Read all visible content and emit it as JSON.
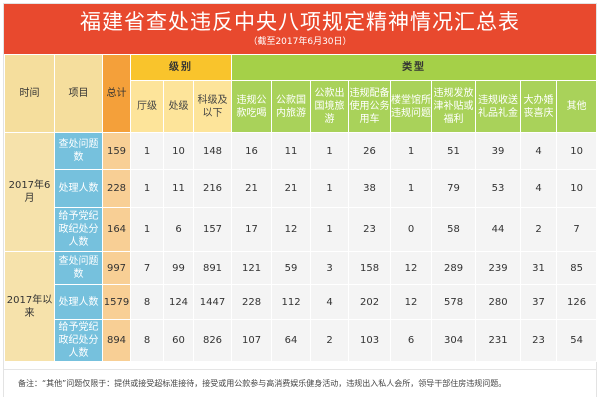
{
  "title": "福建省查处违反中央八项规定精神情况汇总表",
  "subtitle": "（截至2017年6月30日）",
  "headers": {
    "time": "时间",
    "item": "项目",
    "total": "总计",
    "level_group": "级别",
    "type_group": "类型",
    "levels": [
      "厅级",
      "处级",
      "科级及以下"
    ],
    "types": [
      "违规公款吃喝",
      "公款国内旅游",
      "公款出国境旅游",
      "违规配备使用公务用车",
      "楼堂馆所违规问题",
      "违规发放津补贴或福利",
      "违规收送礼品礼金",
      "大办婚丧喜庆",
      "其他"
    ]
  },
  "periods": [
    {
      "label": "2017年6月",
      "rows": [
        {
          "item": "查处问题数",
          "total": "159",
          "levels": [
            "1",
            "10",
            "148"
          ],
          "types": [
            "16",
            "11",
            "1",
            "26",
            "1",
            "51",
            "39",
            "4",
            "10"
          ]
        },
        {
          "item": "处理人数",
          "total": "228",
          "levels": [
            "1",
            "11",
            "216"
          ],
          "types": [
            "21",
            "21",
            "1",
            "38",
            "1",
            "79",
            "53",
            "4",
            "10"
          ]
        },
        {
          "item": "给予党纪政纪处分人数",
          "total": "164",
          "levels": [
            "1",
            "6",
            "157"
          ],
          "types": [
            "17",
            "12",
            "1",
            "23",
            "0",
            "58",
            "44",
            "2",
            "7"
          ]
        }
      ]
    },
    {
      "label": "2017年以来",
      "rows": [
        {
          "item": "查处问题数",
          "total": "997",
          "levels": [
            "7",
            "99",
            "891"
          ],
          "types": [
            "121",
            "59",
            "3",
            "158",
            "12",
            "289",
            "239",
            "31",
            "85"
          ]
        },
        {
          "item": "处理人数",
          "total": "1579",
          "levels": [
            "8",
            "124",
            "1447"
          ],
          "types": [
            "228",
            "112",
            "4",
            "202",
            "12",
            "578",
            "280",
            "37",
            "126"
          ]
        },
        {
          "item": "给予党纪政纪处分人数",
          "total": "894",
          "levels": [
            "8",
            "60",
            "826"
          ],
          "types": [
            "107",
            "64",
            "2",
            "103",
            "6",
            "304",
            "231",
            "23",
            "54"
          ]
        }
      ]
    }
  ],
  "note": "备注：“其他”问题仅限于：提供或接受超标准接待，接受或用公款参与高消费娱乐健身活动，违规出入私人会所，领导干部住房违规问题。",
  "colors": {
    "banner": "#e8492e",
    "level_header": "#f9c42c",
    "type_header": "#a5d048",
    "item_cell": "#76c1dd",
    "total_cell": "#f8cf95",
    "time_cell": "#f6e2ab"
  }
}
